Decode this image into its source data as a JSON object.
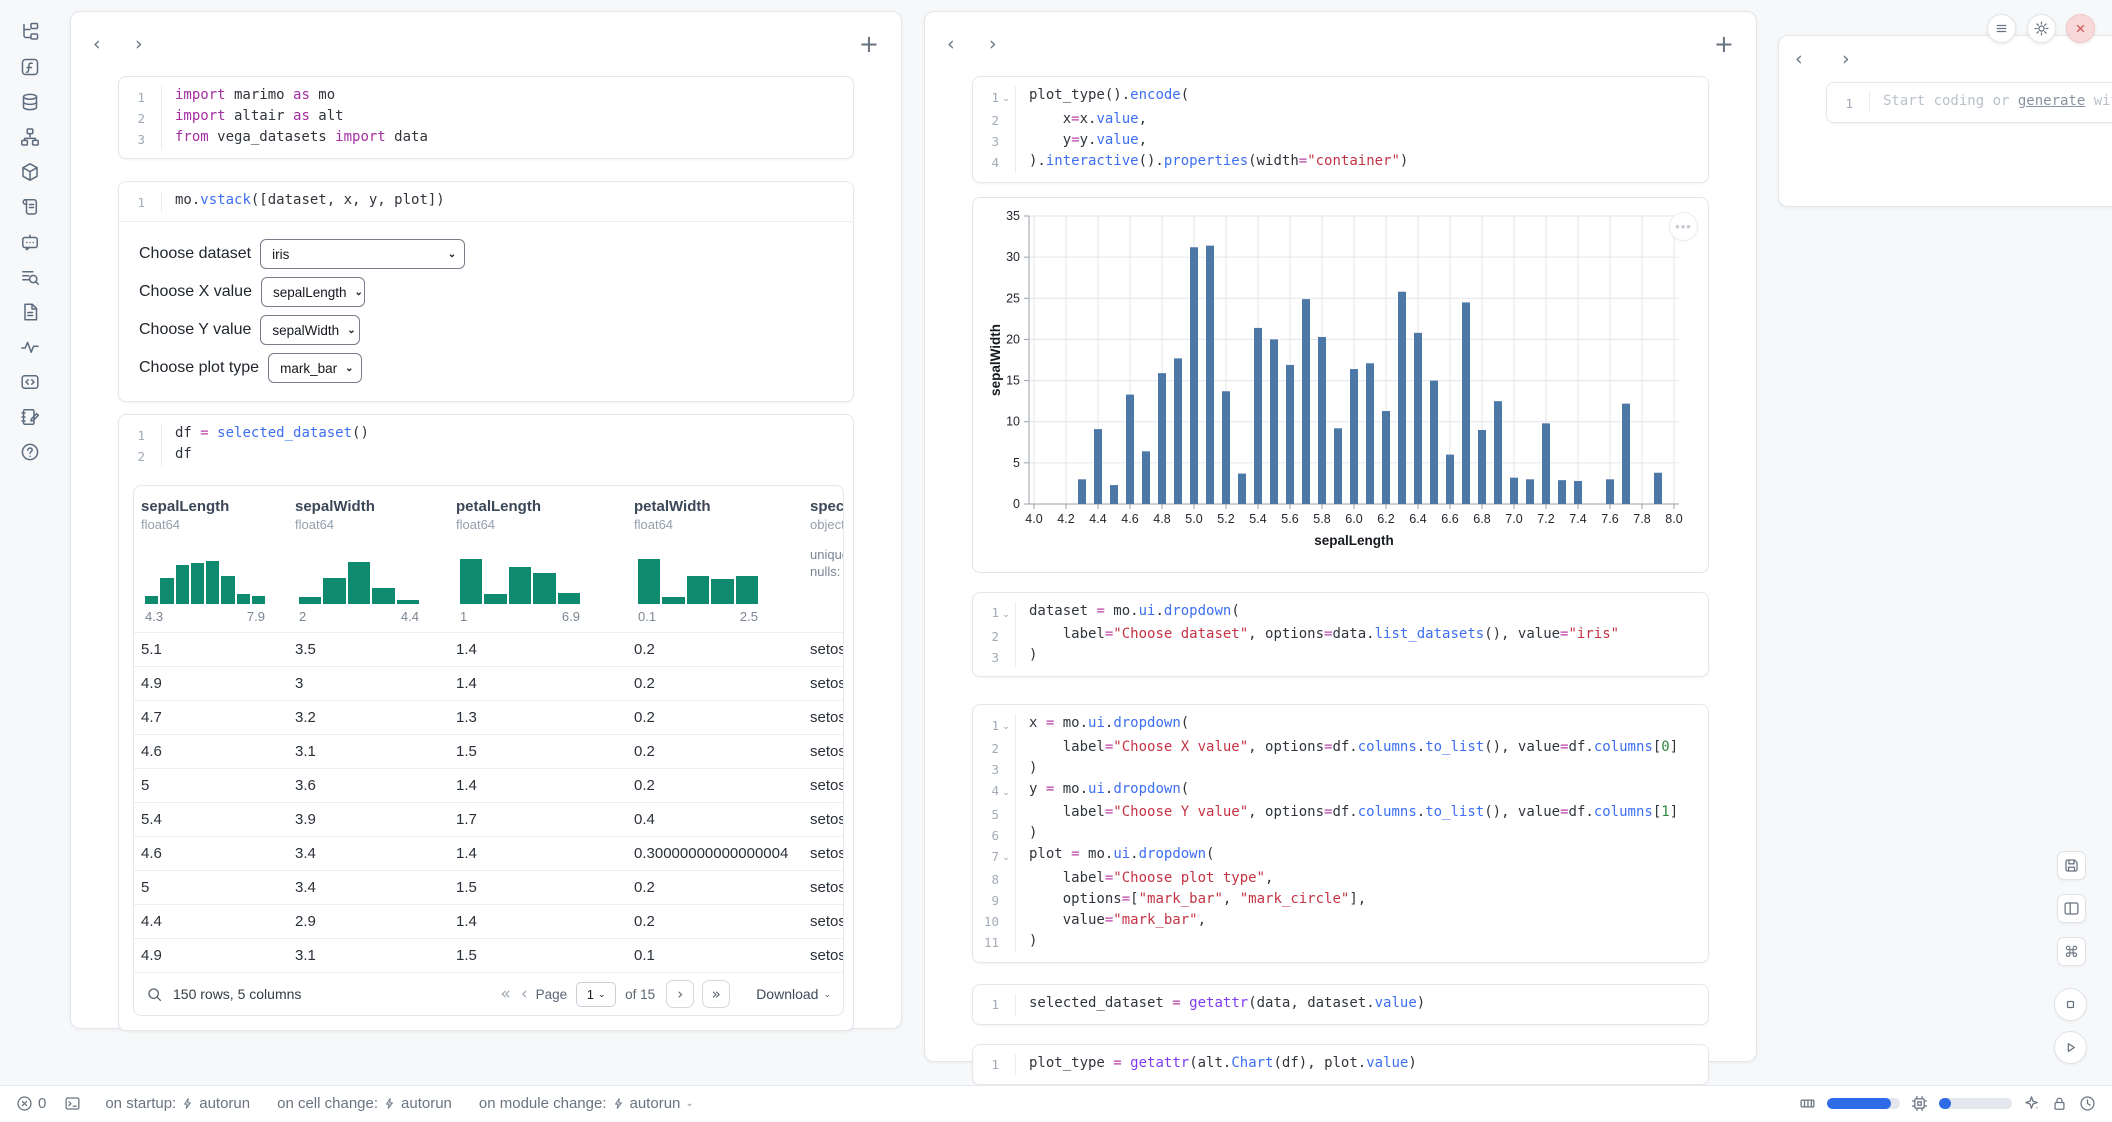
{
  "activity_bar": {
    "icons": [
      "file-tree",
      "function",
      "database",
      "network",
      "cube",
      "scroll",
      "chat-bot",
      "search-list",
      "document",
      "activity",
      "code-snippet",
      "notebook-edit",
      "help"
    ]
  },
  "panel_header": {
    "prev": "‹",
    "next": "›",
    "add": "+"
  },
  "left_panel": {
    "cells": {
      "imports": {
        "chev": [],
        "lines": [
          [
            [
              "k",
              "import"
            ],
            [
              "p",
              " marimo "
            ],
            [
              "k",
              "as"
            ],
            [
              "p",
              " mo"
            ]
          ],
          [
            [
              "k",
              "import"
            ],
            [
              "p",
              " altair "
            ],
            [
              "k",
              "as"
            ],
            [
              "p",
              " alt"
            ]
          ],
          [
            [
              "k",
              "from"
            ],
            [
              "p",
              " vega_datasets "
            ],
            [
              "k",
              "import"
            ],
            [
              "p",
              " data"
            ]
          ]
        ]
      },
      "vstack": {
        "chev": [],
        "lines": [
          [
            [
              "p",
              "mo."
            ],
            [
              "f",
              "vstack"
            ],
            [
              "p",
              "([dataset, x, y, plot])"
            ]
          ]
        ]
      },
      "df": {
        "chev": [],
        "lines": [
          [
            [
              "p",
              "df "
            ],
            [
              "o",
              "="
            ],
            [
              "p",
              " "
            ],
            [
              "f",
              "selected_dataset"
            ],
            [
              "p",
              "()"
            ]
          ],
          [
            [
              "p",
              "df"
            ]
          ]
        ]
      }
    },
    "controls": [
      {
        "label": "Choose dataset",
        "value": "iris"
      },
      {
        "label": "Choose X value",
        "value": "sepalLength"
      },
      {
        "label": "Choose Y value",
        "value": "sepalWidth"
      },
      {
        "label": "Choose plot type",
        "value": "mark_bar"
      }
    ],
    "table": {
      "columns": [
        {
          "name": "sepalLength",
          "dtype": "float64",
          "hist": [
            0.14,
            0.46,
            0.7,
            0.73,
            0.76,
            0.5,
            0.18,
            0.15
          ],
          "min": "4.3",
          "max": "7.9"
        },
        {
          "name": "sepalWidth",
          "dtype": "float64",
          "hist": [
            0.12,
            0.47,
            0.75,
            0.28,
            0.07
          ],
          "min": "2",
          "max": "4.4"
        },
        {
          "name": "petalLength",
          "dtype": "float64",
          "hist": [
            0.8,
            0.18,
            0.66,
            0.56,
            0.2
          ],
          "min": "1",
          "max": "6.9"
        },
        {
          "name": "petalWidth",
          "dtype": "float64",
          "hist": [
            0.8,
            0.12,
            0.5,
            0.44,
            0.5
          ],
          "min": "0.1",
          "max": "2.5"
        },
        {
          "name": "species",
          "dtype": "object",
          "meta": [
            "unique",
            "nulls:"
          ]
        }
      ],
      "rows": [
        [
          "5.1",
          "3.5",
          "1.4",
          "0.2",
          "setosa"
        ],
        [
          "4.9",
          "3",
          "1.4",
          "0.2",
          "setosa"
        ],
        [
          "4.7",
          "3.2",
          "1.3",
          "0.2",
          "setosa"
        ],
        [
          "4.6",
          "3.1",
          "1.5",
          "0.2",
          "setosa"
        ],
        [
          "5",
          "3.6",
          "1.4",
          "0.2",
          "setosa"
        ],
        [
          "5.4",
          "3.9",
          "1.7",
          "0.4",
          "setosa"
        ],
        [
          "4.6",
          "3.4",
          "1.4",
          "0.30000000000000004",
          "setosa"
        ],
        [
          "5",
          "3.4",
          "1.5",
          "0.2",
          "setosa"
        ],
        [
          "4.4",
          "2.9",
          "1.4",
          "0.2",
          "setosa"
        ],
        [
          "4.9",
          "3.1",
          "1.5",
          "0.1",
          "setosa"
        ]
      ],
      "footer": {
        "summary": "150 rows, 5 columns",
        "first": "«",
        "prev": "‹",
        "page_label": "Page",
        "page": "1",
        "of": "of 15",
        "next": "›",
        "last": "»",
        "download": "Download"
      }
    }
  },
  "middle_panel": {
    "cells": {
      "plot": {
        "chev": [
          1
        ],
        "lines": [
          [
            [
              "p",
              "plot_type()."
            ],
            [
              "f",
              "encode"
            ],
            [
              "p",
              "("
            ]
          ],
          [
            [
              "p",
              "    x"
            ],
            [
              "o",
              "="
            ],
            [
              "p",
              "x."
            ],
            [
              "f",
              "value"
            ],
            [
              "p",
              ","
            ]
          ],
          [
            [
              "p",
              "    y"
            ],
            [
              "o",
              "="
            ],
            [
              "p",
              "y."
            ],
            [
              "f",
              "value"
            ],
            [
              "p",
              ","
            ]
          ],
          [
            [
              "p",
              ")."
            ],
            [
              "f",
              "interactive"
            ],
            [
              "p",
              "()."
            ],
            [
              "f",
              "properties"
            ],
            [
              "p",
              "(width"
            ],
            [
              "o",
              "="
            ],
            [
              "s",
              "\"container\""
            ],
            [
              "p",
              ")"
            ]
          ]
        ]
      },
      "dataset": {
        "chev": [
          1
        ],
        "lines": [
          [
            [
              "p",
              "dataset "
            ],
            [
              "o",
              "="
            ],
            [
              "p",
              " mo."
            ],
            [
              "f",
              "ui"
            ],
            [
              "p",
              "."
            ],
            [
              "f",
              "dropdown"
            ],
            [
              "p",
              "("
            ]
          ],
          [
            [
              "p",
              "    label"
            ],
            [
              "o",
              "="
            ],
            [
              "s",
              "\"Choose dataset\""
            ],
            [
              "p",
              ", options"
            ],
            [
              "o",
              "="
            ],
            [
              "p",
              "data."
            ],
            [
              "f",
              "list_datasets"
            ],
            [
              "p",
              "(), value"
            ],
            [
              "o",
              "="
            ],
            [
              "s",
              "\"iris\""
            ]
          ],
          [
            [
              "p",
              ")"
            ]
          ]
        ]
      },
      "xyplot": {
        "chev": [
          1,
          4,
          7
        ],
        "lines": [
          [
            [
              "p",
              "x "
            ],
            [
              "o",
              "="
            ],
            [
              "p",
              " mo."
            ],
            [
              "f",
              "ui"
            ],
            [
              "p",
              "."
            ],
            [
              "f",
              "dropdown"
            ],
            [
              "p",
              "("
            ]
          ],
          [
            [
              "p",
              "    label"
            ],
            [
              "o",
              "="
            ],
            [
              "s",
              "\"Choose X value\""
            ],
            [
              "p",
              ", options"
            ],
            [
              "o",
              "="
            ],
            [
              "p",
              "df."
            ],
            [
              "f",
              "columns"
            ],
            [
              "p",
              "."
            ],
            [
              "f",
              "to_list"
            ],
            [
              "p",
              "(), value"
            ],
            [
              "o",
              "="
            ],
            [
              "p",
              "df."
            ],
            [
              "f",
              "columns"
            ],
            [
              "p",
              "["
            ],
            [
              "n",
              "0"
            ],
            [
              "p",
              "]"
            ]
          ],
          [
            [
              "p",
              ")"
            ]
          ],
          [
            [
              "p",
              "y "
            ],
            [
              "o",
              "="
            ],
            [
              "p",
              " mo."
            ],
            [
              "f",
              "ui"
            ],
            [
              "p",
              "."
            ],
            [
              "f",
              "dropdown"
            ],
            [
              "p",
              "("
            ]
          ],
          [
            [
              "p",
              "    label"
            ],
            [
              "o",
              "="
            ],
            [
              "s",
              "\"Choose Y value\""
            ],
            [
              "p",
              ", options"
            ],
            [
              "o",
              "="
            ],
            [
              "p",
              "df."
            ],
            [
              "f",
              "columns"
            ],
            [
              "p",
              "."
            ],
            [
              "f",
              "to_list"
            ],
            [
              "p",
              "(), value"
            ],
            [
              "o",
              "="
            ],
            [
              "p",
              "df."
            ],
            [
              "f",
              "columns"
            ],
            [
              "p",
              "["
            ],
            [
              "n",
              "1"
            ],
            [
              "p",
              "]"
            ]
          ],
          [
            [
              "p",
              ")"
            ]
          ],
          [
            [
              "p",
              "plot "
            ],
            [
              "o",
              "="
            ],
            [
              "p",
              " mo."
            ],
            [
              "f",
              "ui"
            ],
            [
              "p",
              "."
            ],
            [
              "f",
              "dropdown"
            ],
            [
              "p",
              "("
            ]
          ],
          [
            [
              "p",
              "    label"
            ],
            [
              "o",
              "="
            ],
            [
              "s",
              "\"Choose plot type\""
            ],
            [
              "p",
              ","
            ]
          ],
          [
            [
              "p",
              "    options"
            ],
            [
              "o",
              "="
            ],
            [
              "p",
              "["
            ],
            [
              "s",
              "\"mark_bar\""
            ],
            [
              "p",
              ", "
            ],
            [
              "s",
              "\"mark_circle\""
            ],
            [
              "p",
              "],"
            ]
          ],
          [
            [
              "p",
              "    value"
            ],
            [
              "o",
              "="
            ],
            [
              "s",
              "\"mark_bar\""
            ],
            [
              "p",
              ","
            ]
          ],
          [
            [
              "p",
              ")"
            ]
          ]
        ]
      },
      "selected": {
        "chev": [],
        "lines": [
          [
            [
              "p",
              "selected_dataset "
            ],
            [
              "o",
              "="
            ],
            [
              "p",
              " "
            ],
            [
              "b",
              "getattr"
            ],
            [
              "p",
              "(data, dataset."
            ],
            [
              "f",
              "value"
            ],
            [
              "p",
              ")"
            ]
          ]
        ]
      },
      "plottype": {
        "chev": [],
        "lines": [
          [
            [
              "p",
              "plot_type "
            ],
            [
              "o",
              "="
            ],
            [
              "p",
              " "
            ],
            [
              "b",
              "getattr"
            ],
            [
              "p",
              "(alt."
            ],
            [
              "f",
              "Chart"
            ],
            [
              "p",
              "(df), plot."
            ],
            [
              "f",
              "value"
            ],
            [
              "p",
              ")"
            ]
          ]
        ]
      }
    },
    "chart_menu": "•••"
  },
  "chart_data": {
    "type": "bar",
    "xlabel": "sepalLength",
    "ylabel": "sepalWidth",
    "x": [
      4.3,
      4.4,
      4.5,
      4.6,
      4.7,
      4.8,
      4.9,
      5.0,
      5.1,
      5.2,
      5.3,
      5.4,
      5.5,
      5.6,
      5.7,
      5.8,
      5.9,
      6.0,
      6.1,
      6.2,
      6.3,
      6.4,
      6.5,
      6.6,
      6.7,
      6.8,
      6.9,
      7.0,
      7.1,
      7.2,
      7.3,
      7.4,
      7.6,
      7.7,
      7.9
    ],
    "values": [
      3.0,
      9.1,
      2.3,
      13.3,
      6.4,
      15.9,
      17.7,
      31.2,
      31.4,
      13.7,
      3.7,
      21.4,
      20.0,
      16.9,
      24.9,
      20.3,
      9.2,
      16.4,
      17.1,
      11.3,
      25.8,
      20.8,
      15.0,
      6.0,
      24.5,
      9.0,
      12.5,
      3.2,
      3.0,
      9.8,
      2.9,
      2.8,
      3.0,
      12.2,
      3.8
    ],
    "xlim": [
      4.0,
      8.0
    ],
    "ylim": [
      0,
      35
    ],
    "xticks": [
      "4.0",
      "4.2",
      "4.4",
      "4.6",
      "4.8",
      "5.0",
      "5.2",
      "5.4",
      "5.6",
      "5.8",
      "6.0",
      "6.2",
      "6.4",
      "6.6",
      "6.8",
      "7.0",
      "7.2",
      "7.4",
      "7.6",
      "7.8",
      "8.0"
    ],
    "yticks": [
      0,
      5,
      10,
      15,
      20,
      25,
      30,
      35
    ],
    "bar_color": "#4c78a8",
    "grid": true,
    "legend": "none"
  },
  "right_panel": {
    "scratch": {
      "line_no": "1",
      "pre": "Start coding or ",
      "link": "generate",
      "post": " with AI"
    }
  },
  "window_controls": {
    "buttons": [
      "menu",
      "gear",
      "close"
    ]
  },
  "floating_buttons": {
    "save": "floppy",
    "layout": "layout",
    "shortcuts": "⌘",
    "stop": "stop-square",
    "run": "play"
  },
  "footer": {
    "errors": "0",
    "items": [
      {
        "label": "on startup:",
        "value": "autorun"
      },
      {
        "label": "on cell change:",
        "value": "autorun"
      },
      {
        "label": "on module change:",
        "value": "autorun"
      }
    ],
    "chevron": "⌄",
    "meters": [
      {
        "icon": "ram",
        "fill": 0.88
      },
      {
        "icon": "cpu",
        "fill": 0.17
      }
    ],
    "right_icons": [
      "sparkle",
      "lock",
      "clock"
    ]
  },
  "colors": {
    "accent_blue": "#2e6be6",
    "hist_teal": "#0e8a6f",
    "bar_blue": "#4c78a8",
    "close_red": "#d05353"
  }
}
